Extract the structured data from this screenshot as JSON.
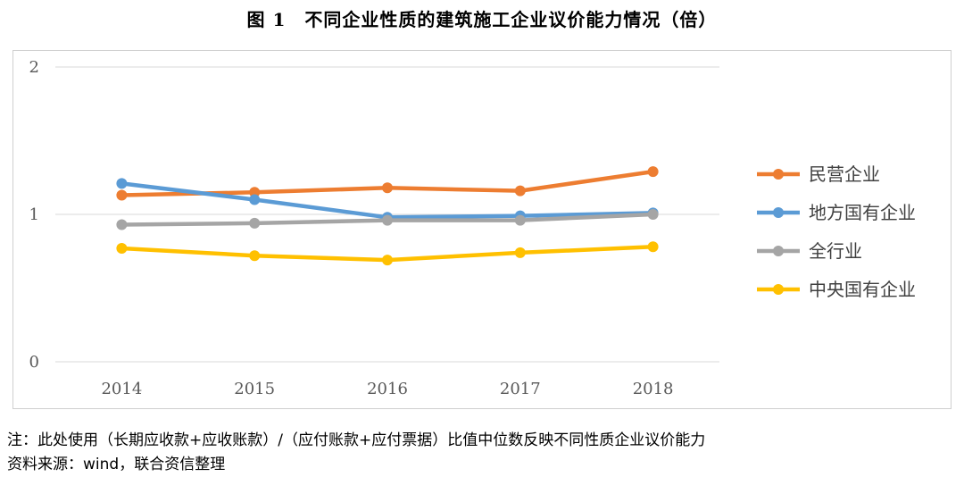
{
  "title": "图 1　不同企业性质的建筑施工企业议价能力情况（倍）",
  "footnote": "注：此处使用（长期应收款+应收账款）/（应付账款+应付票据）比值中位数反映不同性质企业议价能力",
  "source": "资料来源：wind，联合资信整理",
  "chart_data": {
    "type": "line",
    "categories": [
      "2014",
      "2015",
      "2016",
      "2017",
      "2018"
    ],
    "ylim": [
      0,
      2
    ],
    "yticks": [
      0,
      1,
      2
    ],
    "grid": true,
    "legend_position": "right",
    "series": [
      {
        "name": "民营企业",
        "color": "#ED7D31",
        "values": [
          1.13,
          1.15,
          1.18,
          1.16,
          1.29
        ]
      },
      {
        "name": "地方国有企业",
        "color": "#5B9BD5",
        "values": [
          1.21,
          1.1,
          0.98,
          0.99,
          1.01
        ]
      },
      {
        "name": "全行业",
        "color": "#A5A5A5",
        "values": [
          0.93,
          0.94,
          0.96,
          0.96,
          1.0
        ]
      },
      {
        "name": "中央国有企业",
        "color": "#FFC000",
        "values": [
          0.77,
          0.72,
          0.69,
          0.74,
          0.78
        ]
      }
    ]
  }
}
